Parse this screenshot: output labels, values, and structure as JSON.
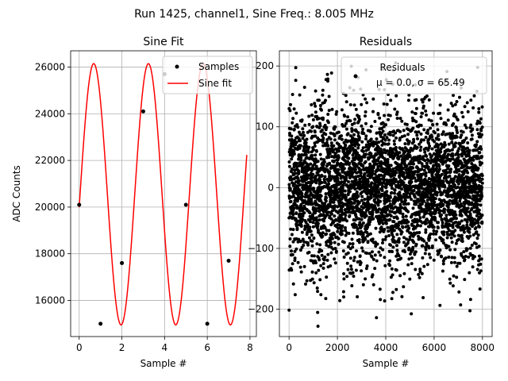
{
  "figure": {
    "suptitle": "Run 1425, channel1, Sine Freq.: 8.005 MHz"
  },
  "chart_data": [
    {
      "type": "scatter",
      "title": "Sine Fit",
      "xlabel": "Sample #",
      "ylabel": "ADC Counts",
      "xlim": [
        -0.4,
        8.3
      ],
      "ylim": [
        14450,
        26700
      ],
      "xticks": [
        0,
        2,
        4,
        6,
        8
      ],
      "xtick_labels": [
        "0",
        "2",
        "4",
        "6",
        "8"
      ],
      "yticks": [
        16000,
        18000,
        20000,
        22000,
        24000,
        26000
      ],
      "ytick_labels": [
        "16000",
        "18000",
        "20000",
        "22000",
        "24000",
        "26000"
      ],
      "grid": true,
      "legend": "top-right",
      "series": [
        {
          "name": "Samples",
          "kind": "scatter",
          "color": "#000000",
          "x": [
            0,
            1,
            2,
            3,
            4,
            5,
            6,
            7
          ],
          "y": [
            20100,
            15000,
            17600,
            24100,
            25700,
            20100,
            15000,
            17700
          ]
        },
        {
          "name": "Sine fit",
          "kind": "line",
          "color": "#ff0000",
          "model": {
            "offset": 20550,
            "amplitude": 5600,
            "cycles_per_sample": 0.3904,
            "phase_rad": -0.1,
            "x_start": 0,
            "x_end": 7.85
          }
        }
      ]
    },
    {
      "type": "scatter",
      "title": "Residuals",
      "xlabel": "Sample #",
      "xlim": [
        -400,
        8400
      ],
      "ylim": [
        -245,
        225
      ],
      "xticks": [
        0,
        2000,
        4000,
        6000,
        8000
      ],
      "xtick_labels": [
        "0",
        "2000",
        "4000",
        "6000",
        "8000"
      ],
      "yticks": [
        -200,
        -100,
        0,
        100,
        200
      ],
      "ytick_labels": [
        "−200",
        "−100",
        "0",
        "100",
        "200"
      ],
      "grid": true,
      "legend": "top-right",
      "legend_title": "Residuals",
      "series": [
        {
          "name": "μ = 0.0, σ = 65.49",
          "kind": "scatter",
          "color": "#000000",
          "count": 8000,
          "mean": 0.0,
          "std": 65.49,
          "envelope_period_samples": 1340,
          "approximate": true
        }
      ]
    }
  ]
}
